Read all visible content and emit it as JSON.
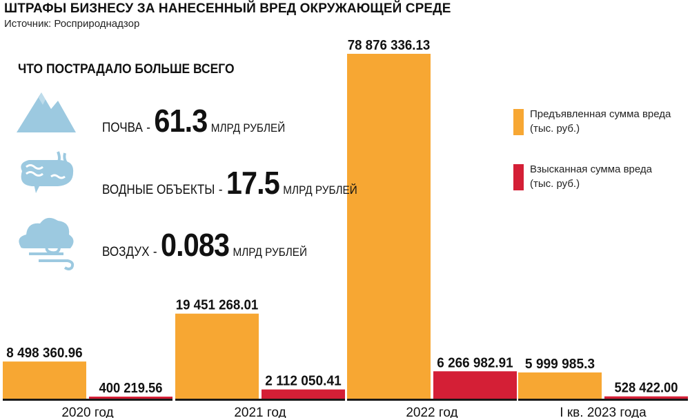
{
  "title": "ШТРАФЫ БИЗНЕСУ ЗА НАНЕСЕННЫЙ ВРЕД ОКРУЖАЮЩЕЙ СРЕДЕ",
  "source": "Источник: Росприроднадзор",
  "impact": {
    "heading": "ЧТО ПОСТРАДАЛО БОЛЬШЕ ВСЕГО",
    "items": [
      {
        "label": "ПОЧВА",
        "dash": "-",
        "value": "61.3",
        "unit": "МЛРД РУБЛЕЙ",
        "icon": "mountain-icon"
      },
      {
        "label": "ВОДНЫЕ ОБЪЕКТЫ",
        "dash": "-",
        "value": "17.5",
        "unit": "МЛРД РУБЛЕЙ",
        "icon": "water-icon"
      },
      {
        "label": "ВОЗДУХ",
        "dash": "-",
        "value": "0.083",
        "unit": "МЛРД РУБЛЕЙ",
        "icon": "cloud-wind-icon"
      }
    ]
  },
  "colors": {
    "claimed": "#F7A733",
    "recovered": "#D41F36",
    "icon": "#9CC9E0",
    "axis": "#1a1a1a"
  },
  "chart_data": {
    "type": "bar",
    "categories": [
      "2020 год",
      "2021 год",
      "2022 год",
      "I кв. 2023 года"
    ],
    "series": [
      {
        "name": "Предъявленная сумма вреда (тыс. руб.)",
        "color": "#F7A733",
        "values": [
          8498360.96,
          19451268.01,
          78876336.13,
          5999985.3
        ],
        "labels": [
          "8 498 360.96",
          "19 451 268.01",
          "78 876 336.13",
          "5 999 985.3"
        ]
      },
      {
        "name": "Взысканная сумма вреда (тыс. руб.)",
        "color": "#D41F36",
        "values": [
          400219.56,
          2112050.41,
          6266982.91,
          528422.0
        ],
        "labels": [
          "400 219.56",
          "2 112 050.41",
          "6 266 982.91",
          "528 422.00"
        ]
      }
    ],
    "ylim": [
      0,
      78876336.13
    ],
    "grid": false,
    "legend_position": "right",
    "xlabel": "",
    "ylabel": ""
  }
}
